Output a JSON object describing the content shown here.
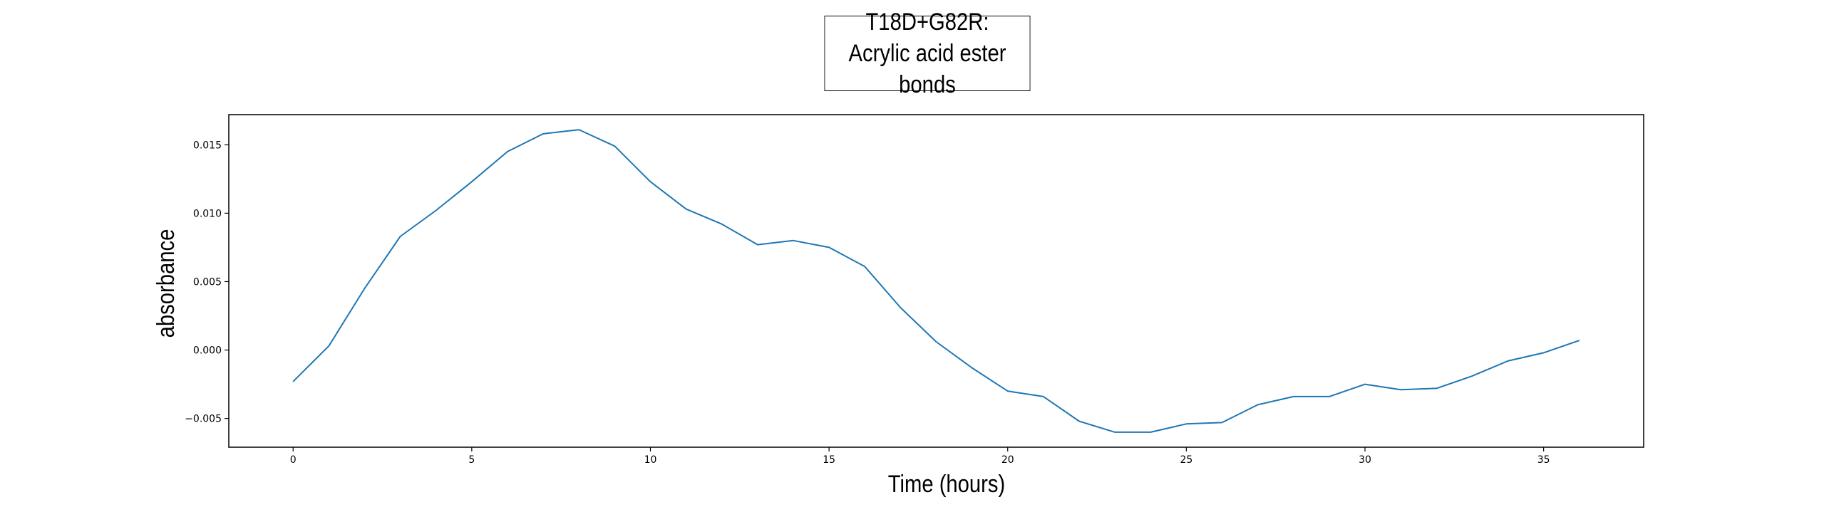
{
  "chart_data": {
    "type": "line",
    "title_lines": [
      "T18D+G82R:",
      "Acrylic acid ester bonds"
    ],
    "xlabel": "Time (hours)",
    "ylabel": "absorbance",
    "xlim": [
      -1.8,
      37.8
    ],
    "ylim": [
      -0.0071,
      0.0172
    ],
    "xticks": [
      0,
      5,
      10,
      15,
      20,
      25,
      30,
      35
    ],
    "xtick_labels": [
      "0",
      "5",
      "10",
      "15",
      "20",
      "25",
      "30",
      "35"
    ],
    "yticks": [
      -0.005,
      0.0,
      0.005,
      0.01,
      0.015
    ],
    "ytick_labels": [
      "−0.005",
      "0.000",
      "0.005",
      "0.010",
      "0.015"
    ],
    "grid": false,
    "legend": false,
    "series": [
      {
        "color": "#1f77b4",
        "x": [
          0,
          1,
          2,
          3,
          4,
          5,
          6,
          7,
          8,
          9,
          10,
          11,
          12,
          13,
          14,
          15,
          16,
          17,
          18,
          19,
          20,
          21,
          22,
          23,
          24,
          25,
          26,
          27,
          28,
          29,
          30,
          31,
          32,
          33,
          34,
          35,
          36
        ],
        "y": [
          -0.0023,
          0.0003,
          0.0045,
          0.0083,
          0.0102,
          0.0123,
          0.0145,
          0.0158,
          0.0161,
          0.0149,
          0.0123,
          0.0103,
          0.0092,
          0.0077,
          0.008,
          0.0075,
          0.0061,
          0.0031,
          0.0006,
          -0.0013,
          -0.003,
          -0.0034,
          -0.0052,
          -0.006,
          -0.006,
          -0.0054,
          -0.0053,
          -0.004,
          -0.0034,
          -0.0034,
          -0.0025,
          -0.0029,
          -0.0028,
          -0.0019,
          -0.0008,
          -0.0002,
          0.0007
        ]
      }
    ]
  }
}
